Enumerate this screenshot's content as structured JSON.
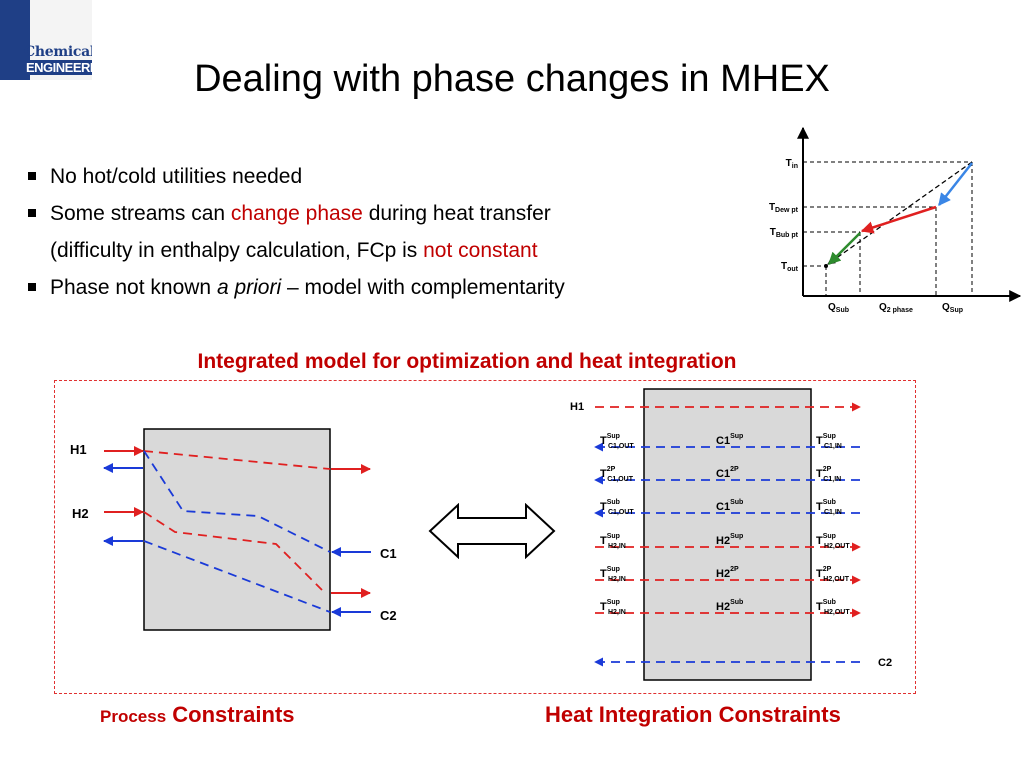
{
  "logo": {
    "line1": "Chemical",
    "line2": "ENGINEERING"
  },
  "title": "Dealing with phase changes in MHEX",
  "bullets": {
    "b1": "No hot/cold utilities needed",
    "b2_pre": "Some streams can ",
    "b2_red": "change phase",
    "b2_post": " during heat transfer",
    "b3_pre": "(difficulty in enthalpy calculation, FCp is ",
    "b3_red": "not constant",
    "b4_pre": "Phase not known ",
    "b4_em": "a priori",
    "b4_post": " – model with complementarity"
  },
  "phase_chart": {
    "y_labels": {
      "tin": "T",
      "tin_sub": "in",
      "tdew": "T",
      "tdew_sub": "Dew pt",
      "tbub": "T",
      "tbub_sub": "Bub pt",
      "tout": "T",
      "tout_sub": "out"
    },
    "x_labels": {
      "qsub": "Q",
      "qsub_sub": "Sub",
      "q2": "Q",
      "q2_sub": "2 phase",
      "qsup": "Q",
      "qsup_sub": "Sup"
    },
    "colors": {
      "sub": "#2e8b2e",
      "two_phase": "#e02020",
      "sup": "#3a86e6"
    }
  },
  "subtitle": "Integrated model for optimization and heat integration",
  "left_diagram": {
    "h1": "H1",
    "h2": "H2",
    "c1": "C1",
    "c2": "C2"
  },
  "right_diagram": {
    "h1": "H1",
    "c2": "C2",
    "rows": [
      {
        "left": "T",
        "left_sup": "Sup",
        "left_sub": "C1,OUT",
        "center": "C1",
        "center_sup": "Sup",
        "right": "T",
        "right_sup": "Sup",
        "right_sub": "C1,IN",
        "color": "#1a3ad8",
        "dir": "left"
      },
      {
        "left": "T",
        "left_sup": "2P",
        "left_sub": "C1,OUT",
        "center": "C1",
        "center_sup": "2P",
        "right": "T",
        "right_sup": "2P",
        "right_sub": "C1,IN",
        "color": "#1a3ad8",
        "dir": "left"
      },
      {
        "left": "T",
        "left_sup": "Sub",
        "left_sub": "C1,OUT",
        "center": "C1",
        "center_sup": "Sub",
        "right": "T",
        "right_sup": "Sub",
        "right_sub": "C1,IN",
        "color": "#1a3ad8",
        "dir": "left"
      },
      {
        "left": "T",
        "left_sup": "Sup",
        "left_sub": "H2,IN",
        "center": "H2",
        "center_sup": "Sup",
        "right": "T",
        "right_sup": "Sup",
        "right_sub": "H2,OUT",
        "color": "#e02020",
        "dir": "right"
      },
      {
        "left": "T",
        "left_sup": "Sup",
        "left_sub": "H2,IN",
        "center": "H2",
        "center_sup": "2P",
        "right": "T",
        "right_sup": "2P",
        "right_sub": "H2,OUT",
        "color": "#e02020",
        "dir": "right"
      },
      {
        "left": "T",
        "left_sup": "Sup",
        "left_sub": "H2,IN",
        "center": "H2",
        "center_sup": "Sub",
        "right": "T",
        "right_sup": "Sub",
        "right_sub": "H2,OUT",
        "color": "#e02020",
        "dir": "right"
      }
    ]
  },
  "captions": {
    "left_small": "Process",
    "left_big": "Constraints",
    "right": "Heat Integration Constraints"
  }
}
